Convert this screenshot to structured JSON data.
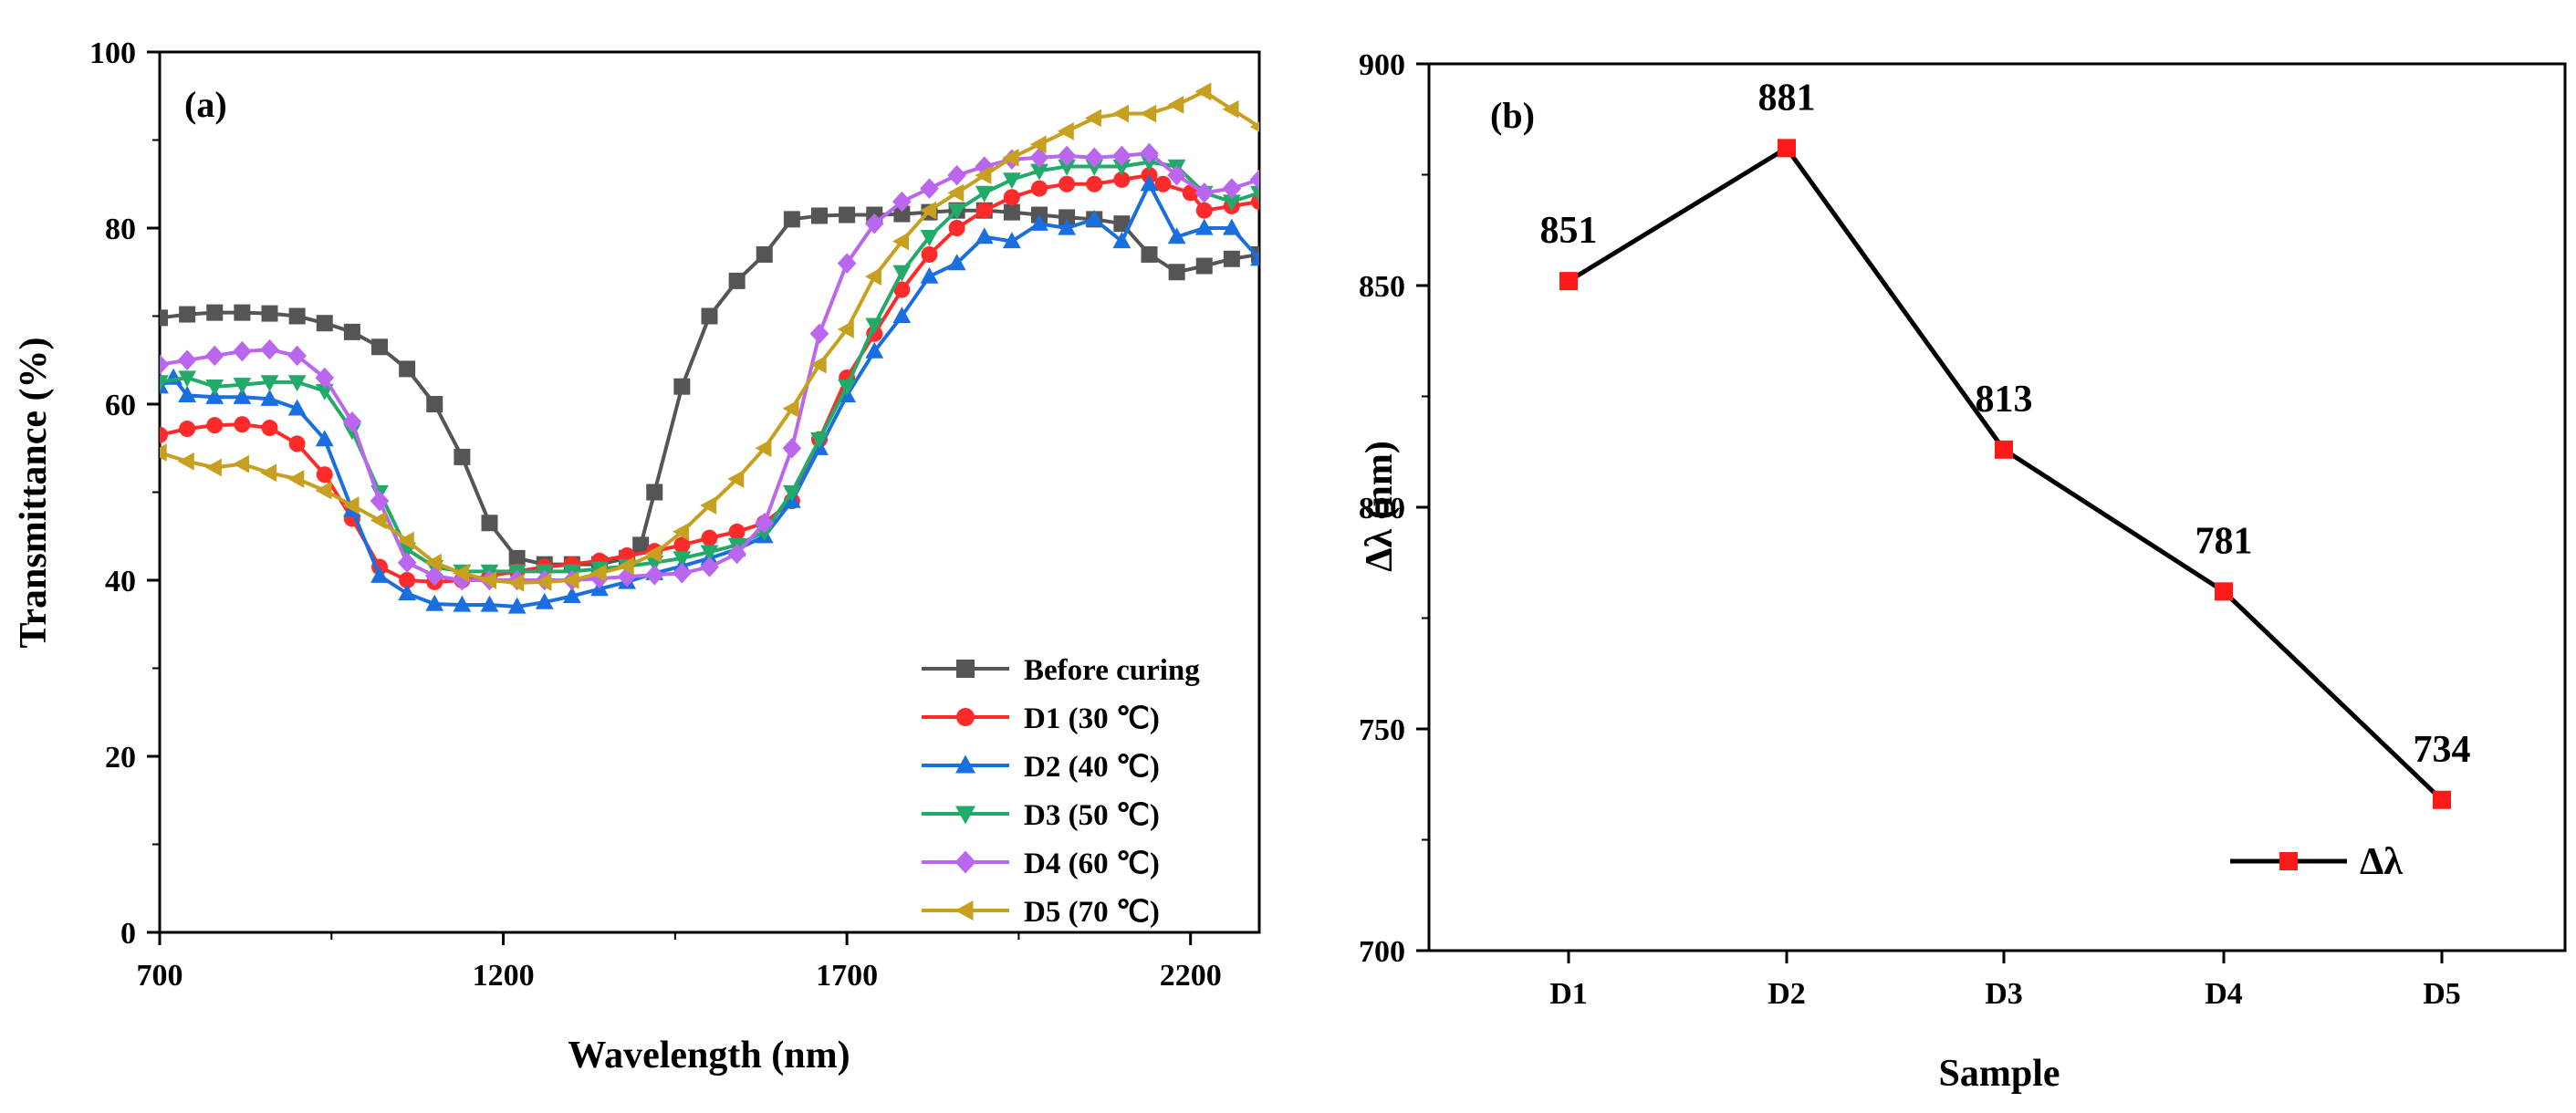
{
  "chart_data": [
    {
      "type": "line",
      "panel": "(a)",
      "xlabel": "Wavelength (nm)",
      "ylabel": "Transmittance (%)",
      "xlim": [
        700,
        2300
      ],
      "ylim": [
        0,
        100
      ],
      "x_ticks": [
        "700",
        "1200",
        "1700",
        "2200"
      ],
      "y_ticks": [
        "0",
        "20",
        "40",
        "60",
        "80",
        "100"
      ],
      "grid": false,
      "legend_position": "bottom-right",
      "series": [
        {
          "name": "Before curing",
          "color": "#555555",
          "marker": "square",
          "points": [
            [
              700,
              69.8
            ],
            [
              740,
              70.2
            ],
            [
              780,
              70.4
            ],
            [
              820,
              70.4
            ],
            [
              860,
              70.3
            ],
            [
              900,
              70.0
            ],
            [
              940,
              69.2
            ],
            [
              980,
              68.2
            ],
            [
              1020,
              66.5
            ],
            [
              1060,
              64.0
            ],
            [
              1100,
              60.0
            ],
            [
              1140,
              54.0
            ],
            [
              1180,
              46.5
            ],
            [
              1220,
              42.5
            ],
            [
              1260,
              41.8
            ],
            [
              1300,
              41.8
            ],
            [
              1340,
              41.8
            ],
            [
              1380,
              42.5
            ],
            [
              1400,
              44.0
            ],
            [
              1420,
              50.0
            ],
            [
              1460,
              62.0
            ],
            [
              1500,
              70.0
            ],
            [
              1540,
              74.0
            ],
            [
              1580,
              77.0
            ],
            [
              1620,
              81.0
            ],
            [
              1660,
              81.4
            ],
            [
              1700,
              81.5
            ],
            [
              1740,
              81.5
            ],
            [
              1780,
              81.6
            ],
            [
              1820,
              81.8
            ],
            [
              1860,
              82.0
            ],
            [
              1900,
              82.0
            ],
            [
              1940,
              81.8
            ],
            [
              1980,
              81.5
            ],
            [
              2020,
              81.2
            ],
            [
              2060,
              81.0
            ],
            [
              2100,
              80.5
            ],
            [
              2140,
              77.0
            ],
            [
              2180,
              75.0
            ],
            [
              2220,
              75.7
            ],
            [
              2260,
              76.5
            ],
            [
              2300,
              77.0
            ]
          ]
        },
        {
          "name": "D1 (30 ℃)",
          "color": "#ff2a2a",
          "marker": "circle",
          "points": [
            [
              700,
              56.5
            ],
            [
              740,
              57.2
            ],
            [
              780,
              57.6
            ],
            [
              820,
              57.7
            ],
            [
              860,
              57.3
            ],
            [
              900,
              55.5
            ],
            [
              940,
              52.0
            ],
            [
              980,
              47.0
            ],
            [
              1020,
              41.5
            ],
            [
              1060,
              40.0
            ],
            [
              1100,
              39.8
            ],
            [
              1140,
              40.0
            ],
            [
              1180,
              40.5
            ],
            [
              1220,
              41.0
            ],
            [
              1260,
              41.5
            ],
            [
              1300,
              41.8
            ],
            [
              1340,
              42.2
            ],
            [
              1380,
              42.8
            ],
            [
              1420,
              43.3
            ],
            [
              1460,
              44.0
            ],
            [
              1500,
              44.8
            ],
            [
              1540,
              45.5
            ],
            [
              1580,
              46.5
            ],
            [
              1620,
              49.0
            ],
            [
              1660,
              56.0
            ],
            [
              1700,
              63.0
            ],
            [
              1740,
              68.0
            ],
            [
              1780,
              73.0
            ],
            [
              1820,
              77.0
            ],
            [
              1860,
              80.0
            ],
            [
              1900,
              82.0
            ],
            [
              1940,
              83.5
            ],
            [
              1980,
              84.5
            ],
            [
              2020,
              85.0
            ],
            [
              2060,
              85.0
            ],
            [
              2100,
              85.5
            ],
            [
              2140,
              86.0
            ],
            [
              2160,
              85.0
            ],
            [
              2200,
              84.0
            ],
            [
              2220,
              82.0
            ],
            [
              2260,
              82.5
            ],
            [
              2300,
              83.0
            ]
          ]
        },
        {
          "name": "D2 (40 ℃)",
          "color": "#1a6fe0",
          "marker": "triangle-up",
          "points": [
            [
              700,
              62.0
            ],
            [
              720,
              63.0
            ],
            [
              740,
              61.0
            ],
            [
              780,
              60.8
            ],
            [
              820,
              60.8
            ],
            [
              860,
              60.6
            ],
            [
              900,
              59.5
            ],
            [
              940,
              56.0
            ],
            [
              980,
              48.0
            ],
            [
              1020,
              40.5
            ],
            [
              1060,
              38.5
            ],
            [
              1100,
              37.3
            ],
            [
              1140,
              37.2
            ],
            [
              1180,
              37.2
            ],
            [
              1220,
              37.0
            ],
            [
              1260,
              37.5
            ],
            [
              1300,
              38.2
            ],
            [
              1340,
              39.0
            ],
            [
              1380,
              39.8
            ],
            [
              1420,
              40.8
            ],
            [
              1460,
              41.6
            ],
            [
              1500,
              42.5
            ],
            [
              1540,
              43.5
            ],
            [
              1580,
              45.0
            ],
            [
              1620,
              49.0
            ],
            [
              1660,
              55.0
            ],
            [
              1700,
              61.0
            ],
            [
              1740,
              66.0
            ],
            [
              1780,
              70.0
            ],
            [
              1820,
              74.5
            ],
            [
              1860,
              76.0
            ],
            [
              1900,
              79.0
            ],
            [
              1940,
              78.5
            ],
            [
              1980,
              80.5
            ],
            [
              2020,
              80.0
            ],
            [
              2060,
              81.0
            ],
            [
              2100,
              78.5
            ],
            [
              2140,
              85.0
            ],
            [
              2180,
              79.0
            ],
            [
              2220,
              80.0
            ],
            [
              2260,
              80.0
            ],
            [
              2300,
              76.5
            ]
          ]
        },
        {
          "name": "D3 (50 ℃)",
          "color": "#22aa6a",
          "marker": "triangle-down",
          "points": [
            [
              700,
              62.5
            ],
            [
              740,
              63.0
            ],
            [
              780,
              62.0
            ],
            [
              820,
              62.2
            ],
            [
              860,
              62.5
            ],
            [
              900,
              62.5
            ],
            [
              940,
              61.5
            ],
            [
              980,
              57.0
            ],
            [
              1020,
              50.0
            ],
            [
              1060,
              43.5
            ],
            [
              1100,
              41.5
            ],
            [
              1140,
              41.0
            ],
            [
              1180,
              41.0
            ],
            [
              1220,
              41.0
            ],
            [
              1260,
              41.0
            ],
            [
              1300,
              41.0
            ],
            [
              1340,
              41.3
            ],
            [
              1380,
              41.6
            ],
            [
              1420,
              42.0
            ],
            [
              1460,
              42.5
            ],
            [
              1500,
              43.2
            ],
            [
              1540,
              44.0
            ],
            [
              1580,
              45.5
            ],
            [
              1620,
              50.0
            ],
            [
              1660,
              56.0
            ],
            [
              1700,
              62.0
            ],
            [
              1740,
              69.0
            ],
            [
              1780,
              75.0
            ],
            [
              1820,
              79.0
            ],
            [
              1860,
              82.0
            ],
            [
              1900,
              84.0
            ],
            [
              1940,
              85.5
            ],
            [
              1980,
              86.5
            ],
            [
              2020,
              87.0
            ],
            [
              2060,
              87.0
            ],
            [
              2100,
              87.0
            ],
            [
              2140,
              87.5
            ],
            [
              2180,
              87.0
            ],
            [
              2220,
              84.0
            ],
            [
              2260,
              83.0
            ],
            [
              2300,
              84.0
            ]
          ]
        },
        {
          "name": "D4 (60 ℃)",
          "color": "#bb66ee",
          "marker": "diamond",
          "points": [
            [
              700,
              64.5
            ],
            [
              740,
              65.0
            ],
            [
              780,
              65.5
            ],
            [
              820,
              66.0
            ],
            [
              860,
              66.2
            ],
            [
              900,
              65.5
            ],
            [
              940,
              63.0
            ],
            [
              980,
              58.0
            ],
            [
              1020,
              49.0
            ],
            [
              1060,
              42.0
            ],
            [
              1100,
              40.5
            ],
            [
              1140,
              40.0
            ],
            [
              1180,
              40.0
            ],
            [
              1220,
              40.0
            ],
            [
              1260,
              40.0
            ],
            [
              1300,
              40.0
            ],
            [
              1340,
              40.2
            ],
            [
              1380,
              40.4
            ],
            [
              1420,
              40.6
            ],
            [
              1460,
              40.8
            ],
            [
              1500,
              41.5
            ],
            [
              1540,
              43.0
            ],
            [
              1580,
              46.5
            ],
            [
              1620,
              55.0
            ],
            [
              1660,
              68.0
            ],
            [
              1700,
              76.0
            ],
            [
              1740,
              80.5
            ],
            [
              1780,
              83.0
            ],
            [
              1820,
              84.5
            ],
            [
              1860,
              86.0
            ],
            [
              1900,
              87.0
            ],
            [
              1940,
              87.8
            ],
            [
              1980,
              88.0
            ],
            [
              2020,
              88.2
            ],
            [
              2060,
              88.0
            ],
            [
              2100,
              88.2
            ],
            [
              2140,
              88.5
            ],
            [
              2180,
              86.0
            ],
            [
              2220,
              84.0
            ],
            [
              2260,
              84.5
            ],
            [
              2300,
              85.5
            ]
          ]
        },
        {
          "name": "D5 (70 ℃)",
          "color": "#c8a020",
          "marker": "triangle-left",
          "points": [
            [
              700,
              54.5
            ],
            [
              740,
              53.5
            ],
            [
              780,
              52.8
            ],
            [
              820,
              53.2
            ],
            [
              860,
              52.2
            ],
            [
              900,
              51.5
            ],
            [
              940,
              50.2
            ],
            [
              980,
              48.5
            ],
            [
              1020,
              46.8
            ],
            [
              1060,
              44.5
            ],
            [
              1100,
              42.0
            ],
            [
              1140,
              40.8
            ],
            [
              1180,
              40.0
            ],
            [
              1220,
              39.7
            ],
            [
              1260,
              39.8
            ],
            [
              1300,
              40.0
            ],
            [
              1340,
              40.8
            ],
            [
              1380,
              41.6
            ],
            [
              1420,
              43.0
            ],
            [
              1460,
              45.5
            ],
            [
              1500,
              48.5
            ],
            [
              1540,
              51.5
            ],
            [
              1580,
              55.0
            ],
            [
              1620,
              59.5
            ],
            [
              1660,
              64.5
            ],
            [
              1700,
              68.5
            ],
            [
              1740,
              74.5
            ],
            [
              1780,
              78.5
            ],
            [
              1820,
              82.0
            ],
            [
              1860,
              84.0
            ],
            [
              1900,
              86.0
            ],
            [
              1940,
              88.0
            ],
            [
              1980,
              89.5
            ],
            [
              2020,
              91.0
            ],
            [
              2060,
              92.5
            ],
            [
              2100,
              93.0
            ],
            [
              2140,
              93.0
            ],
            [
              2180,
              94.0
            ],
            [
              2220,
              95.5
            ],
            [
              2260,
              93.5
            ],
            [
              2300,
              91.5
            ]
          ]
        }
      ]
    },
    {
      "type": "line",
      "panel": "(b)",
      "xlabel": "Sample",
      "ylabel": "Δλ (nm)",
      "categories": [
        "D1",
        "D2",
        "D3",
        "D4",
        "D5"
      ],
      "ylim": [
        700,
        900
      ],
      "y_ticks": [
        "700",
        "750",
        "800",
        "850",
        "900"
      ],
      "grid": false,
      "legend_position": "bottom-right",
      "series": [
        {
          "name": "Δλ",
          "line_color": "#000000",
          "marker_color": "#ff1a1a",
          "marker": "square",
          "values": [
            851,
            881,
            813,
            781,
            734
          ],
          "labels": [
            "851",
            "881",
            "813",
            "781",
            "734"
          ]
        }
      ]
    }
  ]
}
